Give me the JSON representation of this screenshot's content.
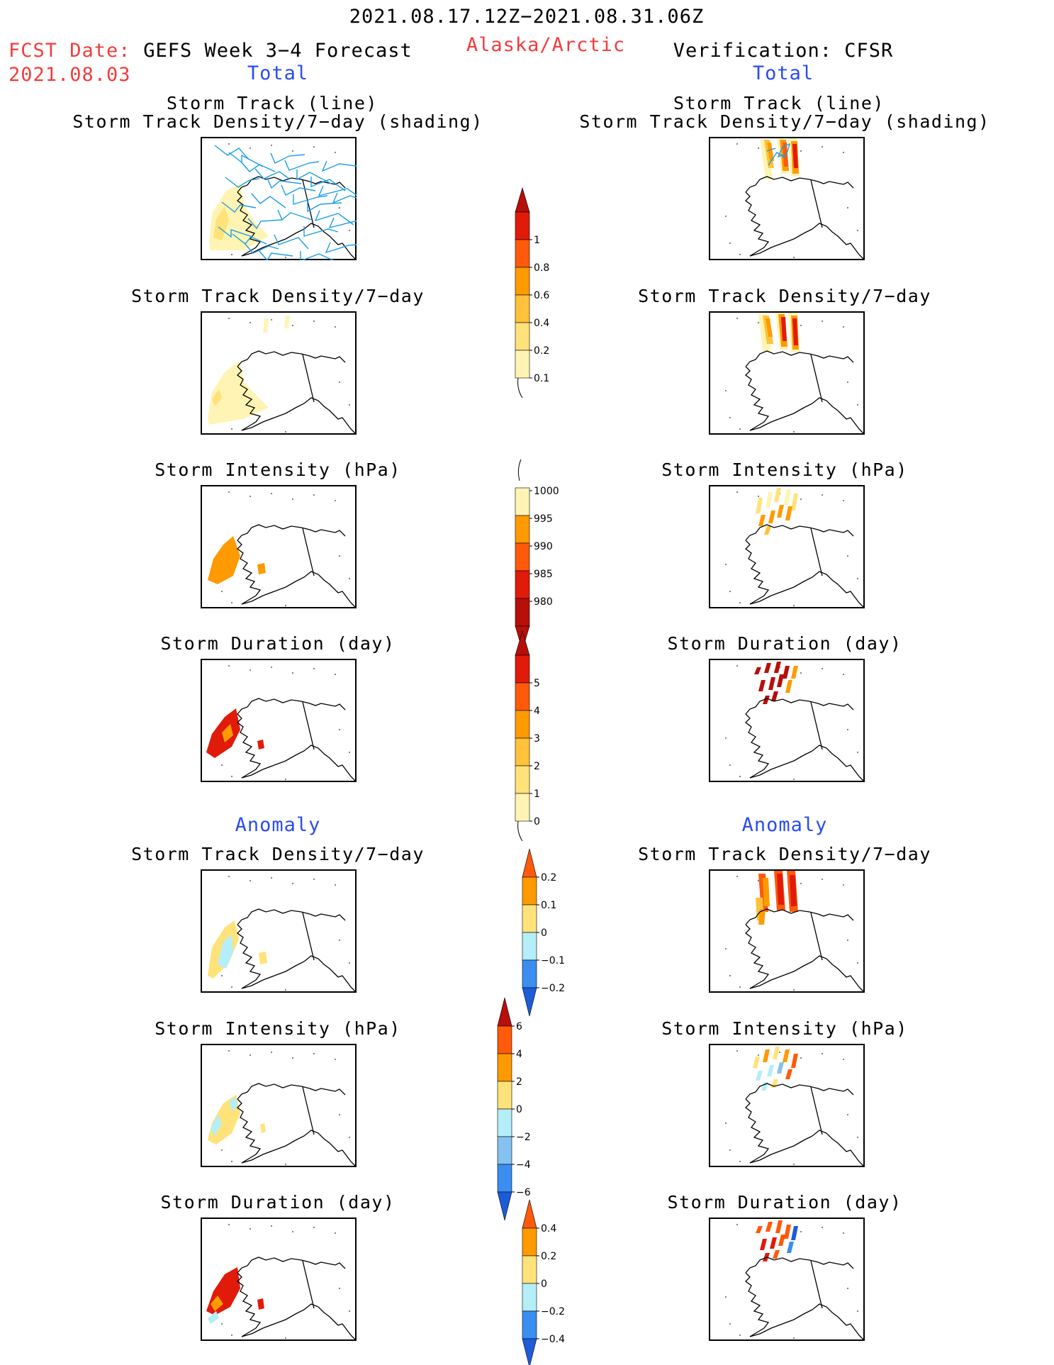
{
  "header": {
    "period": "2021.08.17.12Z−2021.08.31.06Z",
    "fcst_label": "FCST Date:",
    "fcst_date": "2021.08.03",
    "model": "GEFS Week 3−4 Forecast",
    "region": "Alaska/Arctic",
    "verification": "Verification: CFSR"
  },
  "sections": {
    "total": "Total",
    "anomaly": "Anomaly"
  },
  "panel_titles": {
    "track_line": "Storm Track (line)",
    "track_shading": "Storm Track Density/7−day (shading)",
    "density": "Storm Track Density/7−day",
    "intensity": "Storm Intensity (hPa)",
    "duration": "Storm Duration (day)"
  },
  "colorbars": {
    "density_total": [
      "0.1",
      "0.2",
      "0.4",
      "0.6",
      "0.8",
      "1"
    ],
    "intensity_total": [
      "980",
      "985",
      "990",
      "995",
      "1000"
    ],
    "duration_total": [
      "0",
      "1",
      "2",
      "3",
      "4",
      "5"
    ],
    "density_anom": [
      "−0.2",
      "−0.1",
      "0",
      "0.1",
      "0.2"
    ],
    "intensity_anom": [
      "−6",
      "−4",
      "−2",
      "0",
      "2",
      "4",
      "6"
    ],
    "duration_anom": [
      "−0.4",
      "−0.2",
      "0",
      "0.2",
      "0.4"
    ]
  },
  "colors": {
    "pale_yellow": "#fff4b3",
    "light_yellow": "#ffe27a",
    "yellow_orange": "#ffc23a",
    "orange": "#ff9a00",
    "red_orange": "#ff5a0a",
    "red": "#e01b0a",
    "dark_red": "#b80f0a",
    "light_cyan": "#b4eef8",
    "light_blue": "#86c2f0",
    "blue": "#3a8ef0",
    "dark_blue": "#1c5cd8",
    "track_line": "#1a9ee6",
    "header_red": "#f23c3c",
    "header_blue": "#2a4cf0"
  },
  "chart_data": {
    "type": "heatmap",
    "region": "Alaska/Arctic",
    "period": "2021.08.17.12Z−2021.08.31.06Z",
    "forecast_date": "2021.08.03",
    "columns": [
      "GEFS Week 3−4 Forecast",
      "Verification: CFSR"
    ],
    "panels": [
      {
        "section": "Total",
        "title": "Storm Track (line) / Storm Track Density/7−day (shading)",
        "colorbar": "density_total"
      },
      {
        "section": "Total",
        "title": "Storm Track Density/7−day",
        "colorbar": "density_total"
      },
      {
        "section": "Total",
        "title": "Storm Intensity (hPa)",
        "colorbar": "intensity_total"
      },
      {
        "section": "Total",
        "title": "Storm Duration (day)",
        "colorbar": "duration_total"
      },
      {
        "section": "Anomaly",
        "title": "Storm Track Density/7−day",
        "colorbar": "density_anom"
      },
      {
        "section": "Anomaly",
        "title": "Storm Intensity (hPa)",
        "colorbar": "intensity_anom"
      },
      {
        "section": "Anomaly",
        "title": "Storm Duration (day)",
        "colorbar": "duration_anom"
      }
    ]
  }
}
